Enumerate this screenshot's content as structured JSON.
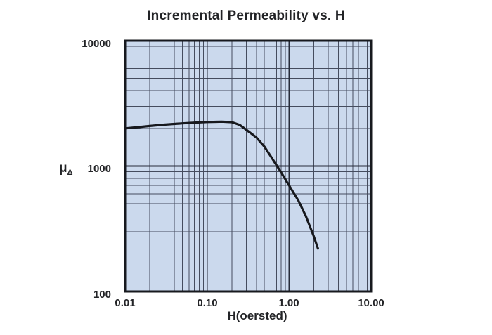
{
  "title": "Incremental Permeability vs. H",
  "colors": {
    "background": "#ffffff",
    "plot_background": "#cbd9ed",
    "grid_minor": "#454c5e",
    "grid_major": "#272c3a",
    "border": "#17191e",
    "curve": "#17191e",
    "text": "#232427"
  },
  "chart_data": {
    "type": "line",
    "title": "Incremental Permeability vs. H",
    "xlabel": "H(oersted)",
    "ylabel": "μ",
    "ylabel_subscript": "Δ",
    "x_scale": "log",
    "y_scale": "log",
    "xlim": [
      0.01,
      10
    ],
    "ylim": [
      100,
      10000
    ],
    "grid": "log decades with minor lines 2-9",
    "legend": "none",
    "x_ticks": [
      {
        "value": 0.01,
        "label": "0.01"
      },
      {
        "value": 0.1,
        "label": "0.10"
      },
      {
        "value": 1,
        "label": "1.00"
      },
      {
        "value": 10,
        "label": "10.00"
      }
    ],
    "y_ticks": [
      {
        "value": 100,
        "label": "100"
      },
      {
        "value": 1000,
        "label": "1000"
      },
      {
        "value": 10000,
        "label": "10000"
      }
    ],
    "series": [
      {
        "name": "incremental permeability",
        "x": [
          0.01,
          0.015,
          0.02,
          0.03,
          0.05,
          0.07,
          0.1,
          0.13,
          0.15,
          0.2,
          0.25,
          0.3,
          0.4,
          0.5,
          0.6,
          0.8,
          1.0,
          1.3,
          1.6,
          2.0,
          2.25
        ],
        "y": [
          2000,
          2050,
          2090,
          2140,
          2190,
          2220,
          2245,
          2255,
          2260,
          2240,
          2130,
          1950,
          1690,
          1430,
          1190,
          890,
          700,
          530,
          400,
          275,
          220
        ]
      }
    ]
  }
}
